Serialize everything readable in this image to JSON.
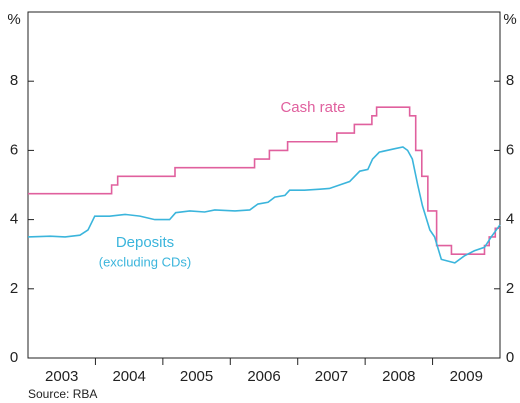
{
  "chart_data": {
    "type": "line",
    "ylabel": "%",
    "y2label": "%",
    "source": "Source: RBA",
    "xlim": [
      2003,
      2010
    ],
    "xticks": [
      {
        "value": 2003.5,
        "label": "2003"
      },
      {
        "value": 2004.5,
        "label": "2004"
      },
      {
        "value": 2005.5,
        "label": "2005"
      },
      {
        "value": 2006.5,
        "label": "2006"
      },
      {
        "value": 2007.5,
        "label": "2007"
      },
      {
        "value": 2008.5,
        "label": "2008"
      },
      {
        "value": 2009.5,
        "label": "2009"
      }
    ],
    "xtick_marks": [
      2004,
      2005,
      2006,
      2007,
      2008,
      2009
    ],
    "ylim": [
      0,
      10
    ],
    "yticks": [
      0,
      2,
      4,
      6,
      8
    ],
    "y2lim": [
      0,
      10
    ],
    "y2ticks": [
      0,
      2,
      4,
      6,
      8
    ],
    "series": [
      {
        "name": "Cash rate",
        "color": "#e0609e",
        "step": true,
        "x": [
          2003.0,
          2004.24,
          2004.33,
          2005.18,
          2006.36,
          2006.58,
          2006.85,
          2007.58,
          2007.84,
          2008.1,
          2008.17,
          2008.66,
          2008.75,
          2008.84,
          2008.93,
          2009.06,
          2009.28,
          2009.77,
          2009.84,
          2009.93,
          2010.0
        ],
        "values": [
          4.75,
          5.0,
          5.25,
          5.5,
          5.75,
          6.0,
          6.25,
          6.5,
          6.75,
          7.0,
          7.25,
          7.0,
          6.0,
          5.25,
          4.25,
          3.25,
          3.0,
          3.25,
          3.5,
          3.75,
          3.75
        ]
      },
      {
        "name": "Deposits",
        "note": "(excluding CDs)",
        "color": "#3bb5dc",
        "step": false,
        "x": [
          2003.0,
          2003.33,
          2003.55,
          2003.77,
          2003.89,
          2003.99,
          2004.21,
          2004.44,
          2004.66,
          2004.88,
          2005.1,
          2005.19,
          2005.4,
          2005.62,
          2005.77,
          2006.07,
          2006.29,
          2006.41,
          2006.56,
          2006.66,
          2006.81,
          2006.88,
          2007.1,
          2007.33,
          2007.47,
          2007.62,
          2007.77,
          2007.92,
          2008.04,
          2008.11,
          2008.21,
          2008.44,
          2008.56,
          2008.63,
          2008.7,
          2008.78,
          2008.85,
          2008.96,
          2009.03,
          2009.13,
          2009.33,
          2009.47,
          2009.62,
          2009.77,
          2009.87,
          2010.0
        ],
        "values": [
          3.5,
          3.52,
          3.5,
          3.55,
          3.7,
          4.1,
          4.1,
          4.15,
          4.1,
          4.0,
          4.0,
          4.2,
          4.25,
          4.22,
          4.28,
          4.25,
          4.28,
          4.45,
          4.5,
          4.65,
          4.7,
          4.85,
          4.85,
          4.88,
          4.9,
          5.0,
          5.1,
          5.4,
          5.45,
          5.75,
          5.95,
          6.05,
          6.1,
          6.0,
          5.75,
          5.0,
          4.4,
          3.7,
          3.5,
          2.85,
          2.75,
          2.95,
          3.1,
          3.2,
          3.5,
          3.85
        ]
      }
    ]
  }
}
